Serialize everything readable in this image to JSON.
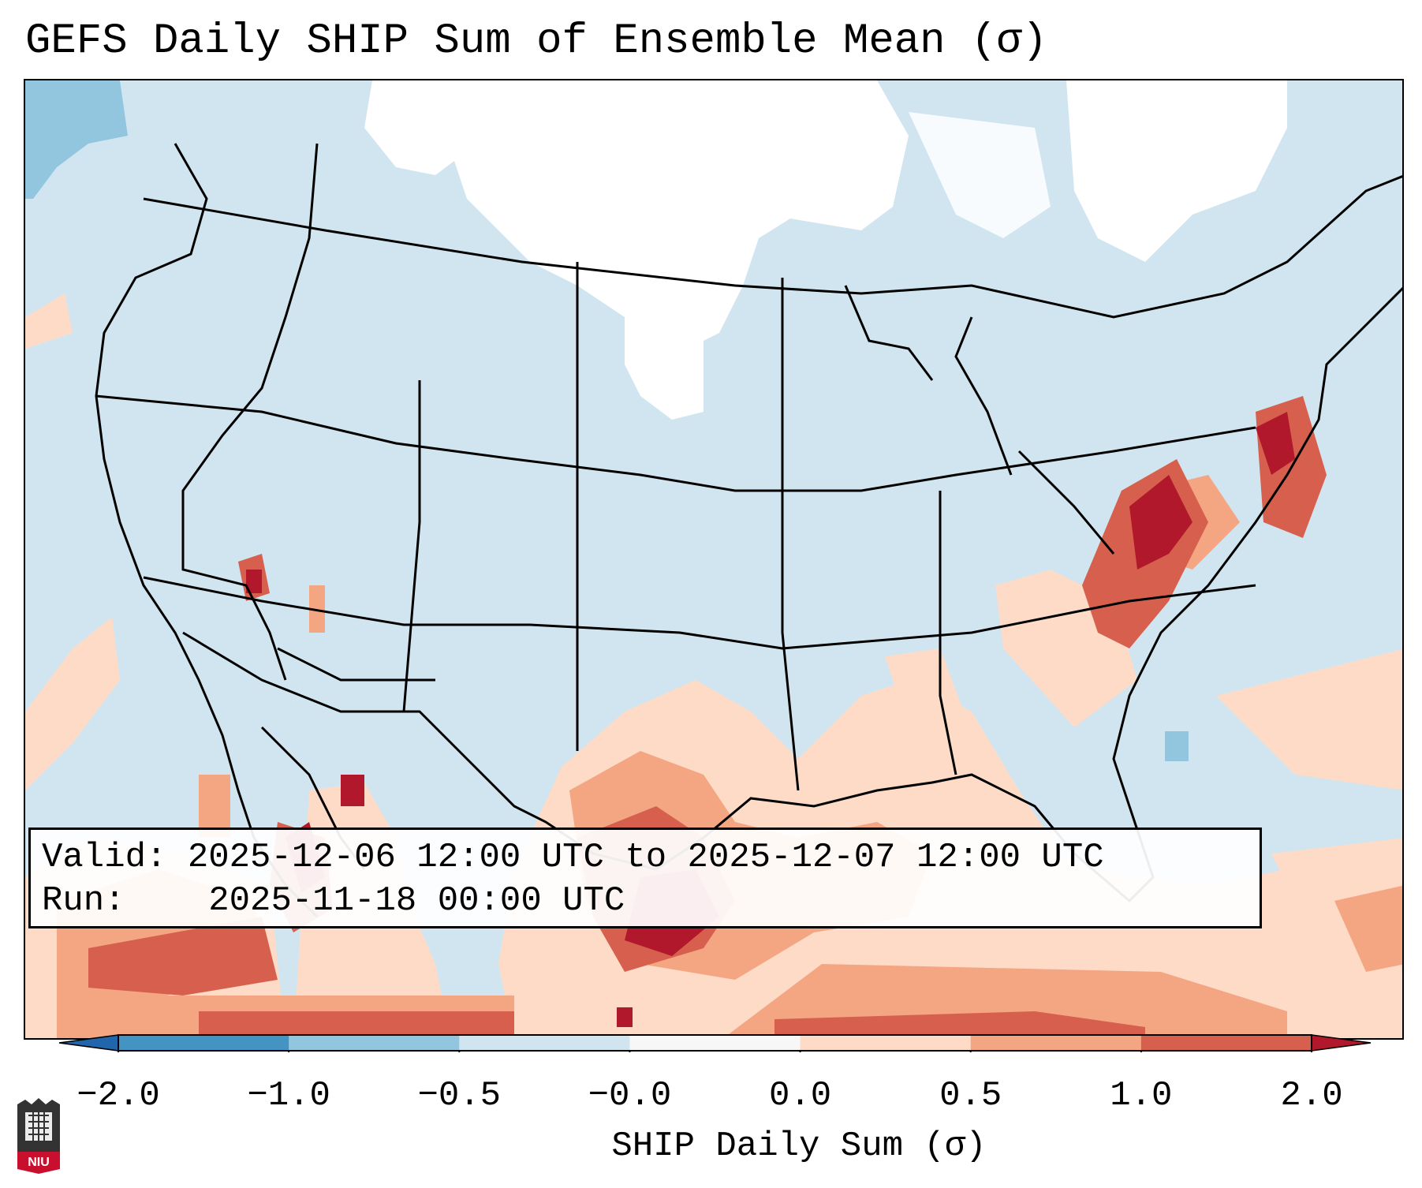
{
  "title": "GEFS Daily SHIP Sum of Ensemble Mean (σ)",
  "info": {
    "valid_label": "Valid:",
    "valid_value": "2025-12-06 12:00 UTC to 2025-12-07 12:00 UTC",
    "run_label": "Run:",
    "run_value": "2025-11-18 00:00 UTC"
  },
  "colorbar": {
    "label": "SHIP Daily Sum (σ)",
    "ticks": [
      "−2.0",
      "−1.0",
      "−0.5",
      "−0.0",
      "0.0",
      "0.5",
      "1.0",
      "2.0"
    ],
    "colors": [
      "#4393c3",
      "#92c5de",
      "#d1e5f0",
      "#f7f7f7",
      "#fddbc7",
      "#f4a582",
      "#d6604d",
      "#b2182b"
    ],
    "extend_low_color": "#2166ac",
    "extend_high_color": "#b2182b"
  },
  "map": {
    "background_color": "#d1e5f0",
    "near_zero_color": "#ffffff",
    "border_color": "#000000"
  },
  "logo": {
    "text": "NIU",
    "icon": "niu-logo-icon"
  }
}
